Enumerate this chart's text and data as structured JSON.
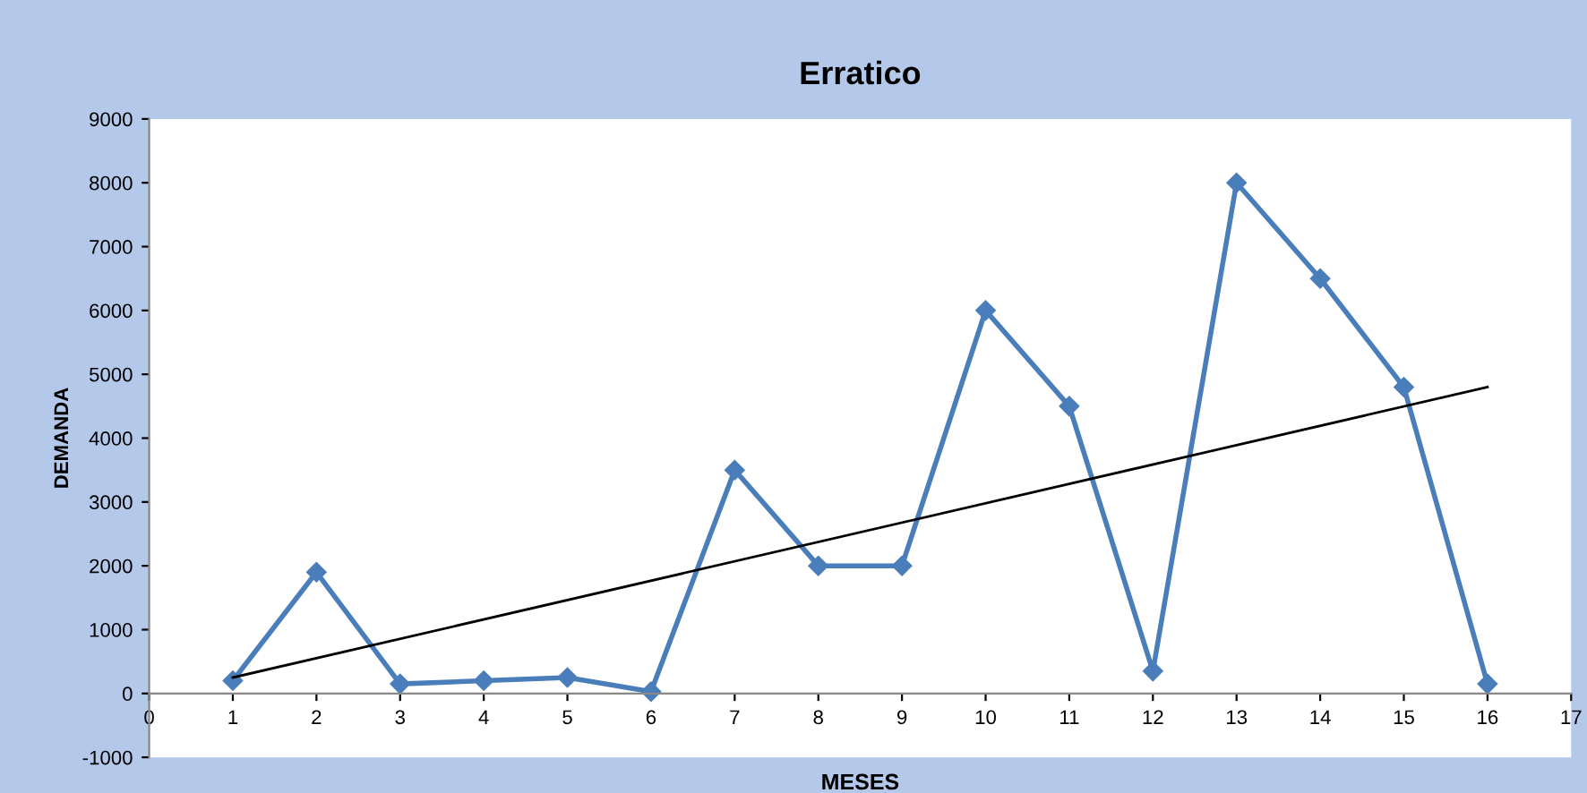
{
  "chart_data": {
    "type": "line",
    "title": "Erratico",
    "xlabel": "MESES",
    "ylabel": "DEMANDA",
    "x": [
      1,
      2,
      3,
      4,
      5,
      6,
      7,
      8,
      9,
      10,
      11,
      12,
      13,
      14,
      15,
      16
    ],
    "series": [
      {
        "color": "#4a7ebb",
        "marker": "diamond",
        "values": [
          200,
          1900,
          150,
          200,
          250,
          30,
          3500,
          2000,
          2000,
          6000,
          4500,
          350,
          8000,
          6500,
          4800,
          150
        ]
      },
      {
        "color": "#000000",
        "marker": "none",
        "x": [
          1,
          16
        ],
        "values": [
          250,
          4800
        ]
      }
    ],
    "xlim": [
      0,
      17
    ],
    "xticks": [
      0,
      1,
      2,
      3,
      4,
      5,
      6,
      7,
      8,
      9,
      10,
      11,
      12,
      13,
      14,
      15,
      16,
      17
    ],
    "ylim": [
      -1000,
      9000
    ],
    "yticks": [
      -1000,
      0,
      1000,
      2000,
      3000,
      4000,
      5000,
      6000,
      7000,
      8000,
      9000
    ],
    "grid": false
  }
}
